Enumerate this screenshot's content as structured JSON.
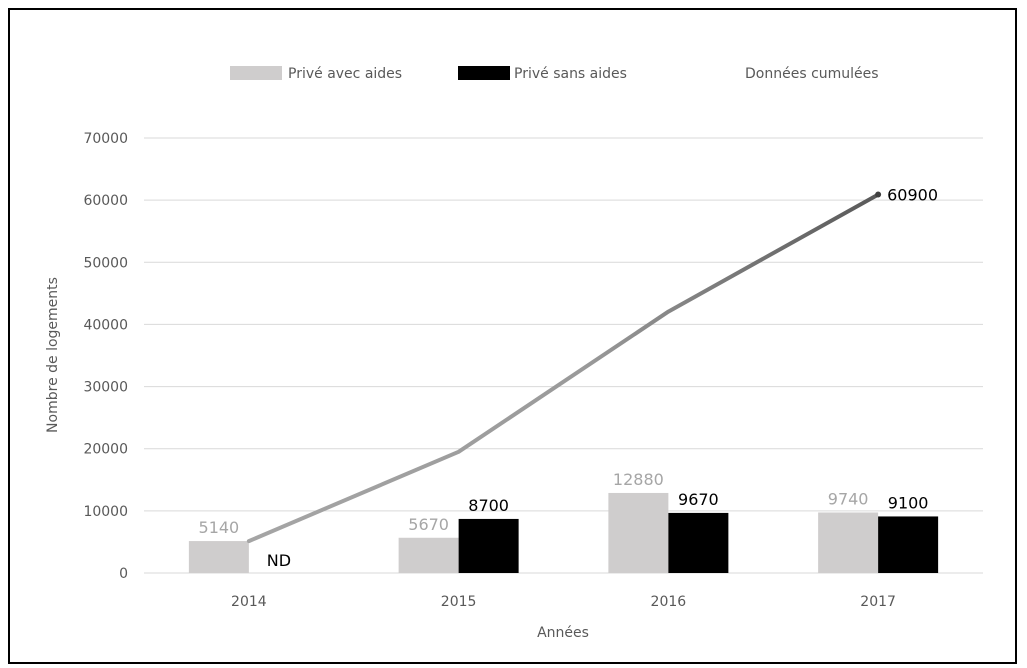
{
  "chart_data": {
    "type": "bar",
    "categories": [
      "2014",
      "2015",
      "2016",
      "2017"
    ],
    "ylim": [
      0,
      70000
    ],
    "yticks": [
      0,
      10000,
      20000,
      30000,
      40000,
      50000,
      60000,
      70000
    ],
    "ylabel": "Nombre de logements",
    "xlabel": "Années",
    "grid": true,
    "legend_position": "top",
    "series": [
      {
        "name": "Privé avec aides",
        "kind": "bar",
        "color": "#cfcdcd",
        "values": [
          5140,
          5670,
          12880,
          9740
        ],
        "labels": [
          "5140",
          "5670",
          "12880",
          "9740"
        ]
      },
      {
        "name": "Privé sans aides",
        "kind": "bar",
        "color": "#000000",
        "values": [
          null,
          8700,
          9670,
          9100
        ],
        "labels": [
          "ND",
          "8700",
          "9670",
          "9100"
        ]
      },
      {
        "name": "Données cumulées",
        "kind": "line",
        "color_start": "#a6a6a6",
        "color_end": "#595959",
        "values": [
          5140,
          19510,
          42060,
          60900
        ],
        "labels": [
          null,
          null,
          null,
          "60900"
        ]
      }
    ]
  }
}
